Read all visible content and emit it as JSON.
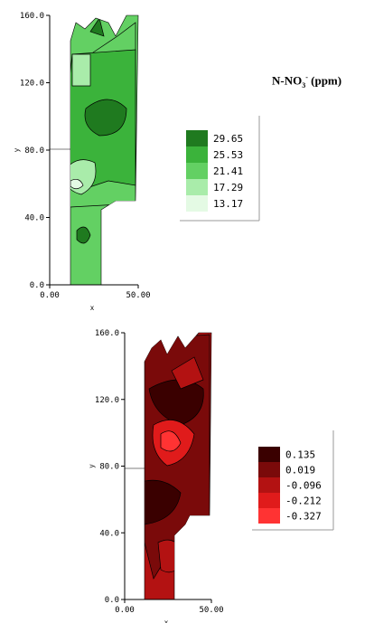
{
  "title": {
    "main": "N-NO",
    "sub": "3",
    "sup": "-",
    "unit": "(ppm)"
  },
  "chart_data": [
    {
      "type": "heatmap",
      "xlabel": "x",
      "ylabel": "y",
      "xlim": [
        0,
        50
      ],
      "ylim": [
        0,
        160
      ],
      "x_ticks": [
        "0.00",
        "50.00"
      ],
      "y_ticks": [
        "0.0",
        "40.0",
        "80.0",
        "120.0",
        "160.0"
      ],
      "legend": {
        "position": "right",
        "levels": [
          "29.65",
          "25.53",
          "21.41",
          "17.29",
          "13.17"
        ],
        "colors": [
          "#1f7a1f",
          "#3bb33b",
          "#63d063",
          "#a9ecaa",
          "#e4fae4"
        ]
      }
    },
    {
      "type": "heatmap",
      "xlabel": "x",
      "ylabel": "y",
      "xlim": [
        0,
        50
      ],
      "ylim": [
        0,
        160
      ],
      "x_ticks": [
        "0.00",
        "50.00"
      ],
      "y_ticks": [
        "0.0",
        "40.0",
        "80.0",
        "120.0",
        "160.0"
      ],
      "legend": {
        "position": "right",
        "levels": [
          "0.135",
          "0.019",
          "-0.096",
          "-0.212",
          "-0.327"
        ],
        "colors": [
          "#3a0000",
          "#7a0a0a",
          "#b31212",
          "#e01b1b",
          "#ff3333"
        ]
      }
    }
  ]
}
